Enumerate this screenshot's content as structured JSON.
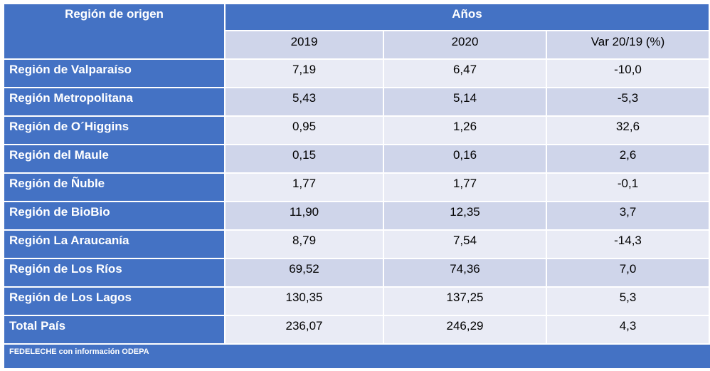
{
  "chart_data": {
    "type": "table",
    "header": {
      "region_label": "Región de origen",
      "years_label": "Años",
      "columns": [
        "2019",
        "2020",
        "Var 20/19 (%)"
      ]
    },
    "rows": [
      {
        "region": "Región de Valparaíso",
        "values": [
          "7,19",
          "6,47",
          "-10,0"
        ]
      },
      {
        "region": "Región Metropolitana",
        "values": [
          "5,43",
          "5,14",
          "-5,3"
        ]
      },
      {
        "region": "Región de O´Higgins",
        "values": [
          "0,95",
          "1,26",
          "32,6"
        ]
      },
      {
        "region": "Región del Maule",
        "values": [
          "0,15",
          "0,16",
          "2,6"
        ]
      },
      {
        "region": "Región de Ñuble",
        "values": [
          "1,77",
          "1,77",
          "-0,1"
        ]
      },
      {
        "region": "Región de BioBio",
        "values": [
          "11,90",
          "12,35",
          "3,7"
        ]
      },
      {
        "region": "Región La Araucanía",
        "values": [
          "8,79",
          "7,54",
          "-14,3"
        ]
      },
      {
        "region": "Región de Los Ríos",
        "values": [
          "69,52",
          "74,36",
          "7,0"
        ]
      },
      {
        "region": "Región de Los Lagos",
        "values": [
          "130,35",
          "137,25",
          "5,3"
        ]
      },
      {
        "region": "Total País",
        "values": [
          "236,07",
          "246,29",
          "4,3"
        ]
      }
    ],
    "source": "FEDELECHE con información ODEPA"
  },
  "colors": {
    "header_blue": "#4472c4",
    "band_light": "#e9ebf5",
    "band_dark": "#cfd5ea"
  }
}
